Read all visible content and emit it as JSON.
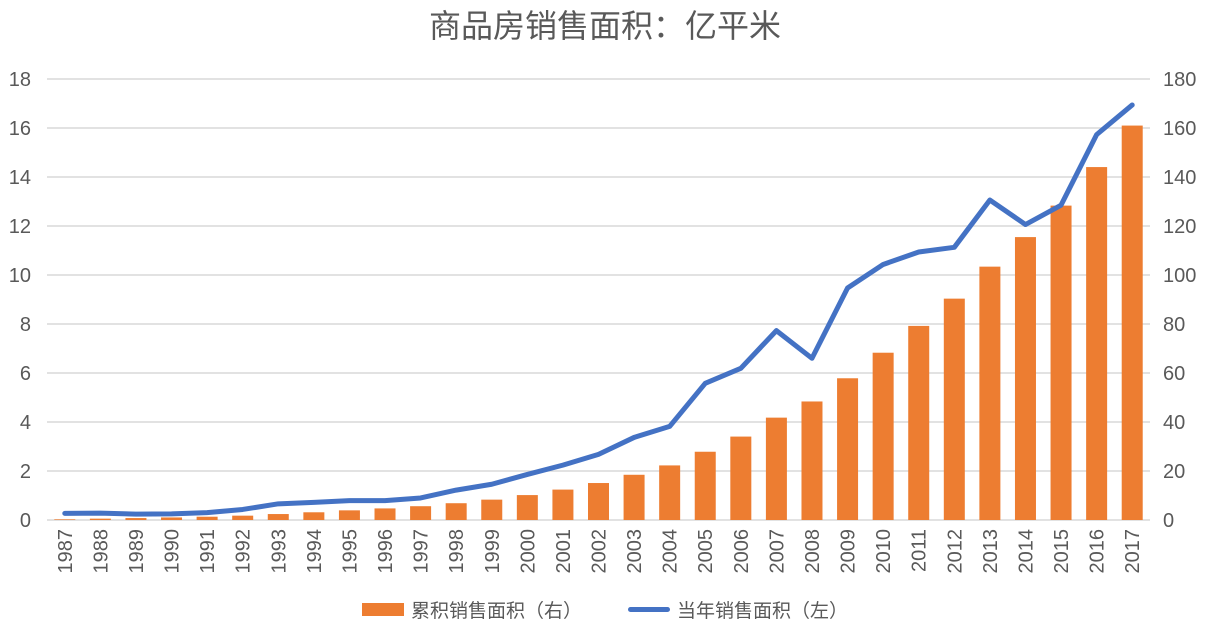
{
  "chart_data": {
    "type": "bar",
    "subtype": "combo-bar-line-dual-axis",
    "title": "商品房销售面积：亿平米",
    "title_color": "#595959",
    "categories": [
      "1987",
      "1988",
      "1989",
      "1990",
      "1991",
      "1992",
      "1993",
      "1994",
      "1995",
      "1996",
      "1997",
      "1998",
      "1999",
      "2000",
      "2001",
      "2002",
      "2003",
      "2004",
      "2005",
      "2006",
      "2007",
      "2008",
      "2009",
      "2010",
      "2011",
      "2012",
      "2013",
      "2014",
      "2015",
      "2016",
      "2017"
    ],
    "series": [
      {
        "name": "累积销售面积（右）",
        "type": "bar",
        "axis": "right",
        "color": "#ED7D31",
        "values": [
          0.27,
          0.55,
          0.79,
          1.04,
          1.34,
          1.77,
          2.43,
          3.15,
          3.94,
          4.73,
          5.63,
          6.85,
          8.31,
          10.17,
          12.41,
          15.09,
          18.46,
          22.28,
          27.86,
          34.05,
          41.78,
          48.38,
          57.85,
          68.28,
          79.22,
          90.35,
          103.41,
          115.47,
          128.32,
          144.05,
          160.99
        ]
      },
      {
        "name": "当年销售面积（左）",
        "type": "line",
        "axis": "left",
        "color": "#4472C4",
        "values": [
          0.27,
          0.28,
          0.24,
          0.25,
          0.3,
          0.43,
          0.66,
          0.72,
          0.79,
          0.79,
          0.9,
          1.22,
          1.46,
          1.86,
          2.24,
          2.68,
          3.37,
          3.82,
          5.58,
          6.19,
          7.73,
          6.6,
          9.47,
          10.43,
          10.94,
          11.13,
          13.06,
          12.06,
          12.85,
          15.73,
          16.94
        ]
      }
    ],
    "left_axis": {
      "min": 0,
      "max": 18,
      "ticks": [
        0,
        2,
        4,
        6,
        8,
        10,
        12,
        14,
        16,
        18
      ]
    },
    "right_axis": {
      "min": 0,
      "max": 180,
      "ticks": [
        0,
        20,
        40,
        60,
        80,
        100,
        120,
        140,
        160,
        180
      ]
    },
    "gridlines": "horizontal",
    "gridline_color": "#D9D9D9",
    "axis_text_color": "#595959",
    "x_label_rotation_deg": -90,
    "legend_position": "bottom"
  }
}
